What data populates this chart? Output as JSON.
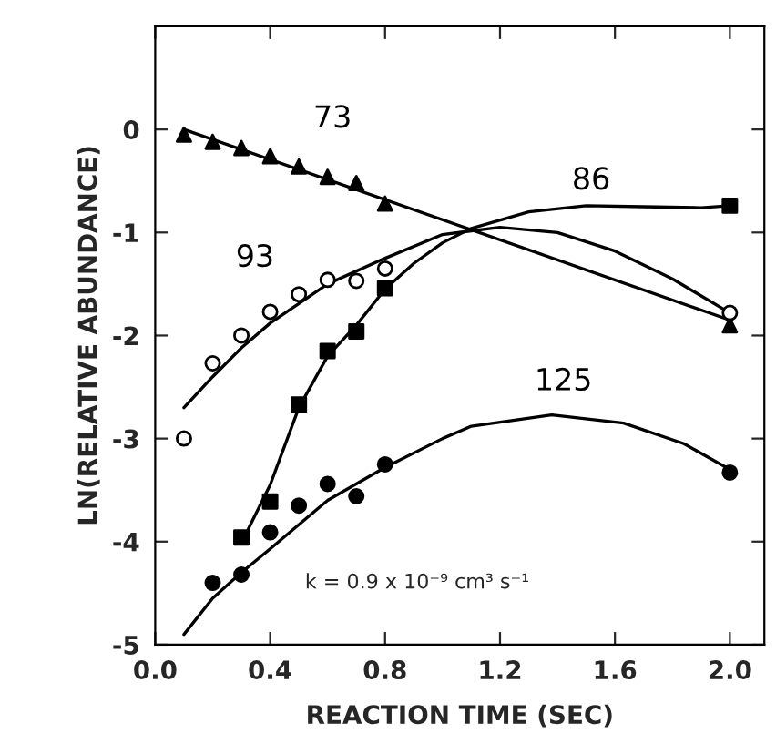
{
  "chart_data": {
    "type": "scatter",
    "xlabel": "REACTION TIME (SEC)",
    "ylabel": "LN(RELATIVE ABUNDANCE)",
    "xlim": [
      0,
      2.12
    ],
    "ylim": [
      -5,
      1
    ],
    "xticks": [
      {
        "value": 0,
        "label": "0.0"
      },
      {
        "value": 0.4,
        "label": "0.4"
      },
      {
        "value": 0.8,
        "label": "0.8"
      },
      {
        "value": 1.2,
        "label": "1.2"
      },
      {
        "value": 1.6,
        "label": "1.6"
      },
      {
        "value": 2.0,
        "label": "2.0"
      }
    ],
    "yticks": [
      -5,
      -4,
      -3,
      -2,
      -1,
      0
    ],
    "grid": false,
    "legend": false,
    "annotations": [
      "k = 0.9 x 10⁻⁹ cm³ s⁻¹"
    ],
    "series": [
      {
        "color": "#000000",
        "marker": "triangle",
        "x": [
          0.1,
          0.2,
          0.3,
          0.4,
          0.5,
          0.6,
          0.7,
          0.8,
          2.0
        ],
        "values": [
          -0.05,
          -0.12,
          -0.18,
          -0.26,
          -0.36,
          -0.46,
          -0.52,
          -0.72,
          -1.9
        ]
      },
      {
        "color": "#ffffff",
        "marker": "circle",
        "x": [
          0.1,
          0.2,
          0.3,
          0.4,
          0.5,
          0.6,
          0.7,
          0.8,
          2.0
        ],
        "values": [
          -3.0,
          -2.27,
          -2.0,
          -1.77,
          -1.6,
          -1.46,
          -1.47,
          -1.35,
          -1.78
        ]
      },
      {
        "color": "#000000",
        "marker": "square",
        "x": [
          0.3,
          0.4,
          0.5,
          0.6,
          0.7,
          0.8,
          2.0
        ],
        "values": [
          -3.96,
          -3.61,
          -2.67,
          -2.15,
          -1.96,
          -1.54,
          -0.74
        ]
      },
      {
        "color": "#000000",
        "marker": "circle",
        "x": [
          0.2,
          0.3,
          0.4,
          0.5,
          0.6,
          0.7,
          0.8,
          2.0
        ],
        "values": [
          -4.4,
          -4.32,
          -3.91,
          -3.65,
          -3.44,
          -3.56,
          -3.25,
          -3.33
        ]
      },
      {
        "type": "line",
        "color": "#000000",
        "marker": "none",
        "line_style": "solid",
        "name": "73",
        "x": [
          0.1,
          2.0
        ],
        "values": [
          0.0,
          -1.85
        ]
      },
      {
        "type": "line",
        "color": "#000000",
        "marker": "none",
        "line_style": "solid",
        "name": "93",
        "x": [
          0.1,
          0.2,
          0.3,
          0.4,
          0.6,
          0.8,
          1.0,
          1.2,
          1.4,
          1.6,
          1.8,
          2.0
        ],
        "values": [
          -2.7,
          -2.4,
          -2.12,
          -1.88,
          -1.5,
          -1.25,
          -1.02,
          -0.95,
          -1.0,
          -1.18,
          -1.45,
          -1.78
        ]
      },
      {
        "type": "line",
        "color": "#000000",
        "marker": "none",
        "line_style": "solid",
        "name": "86",
        "x": [
          0.32,
          0.4,
          0.5,
          0.6,
          0.7,
          0.8,
          0.9,
          1.0,
          1.1,
          1.3,
          1.5,
          1.7,
          1.9,
          2.0
        ],
        "values": [
          -3.9,
          -3.45,
          -2.7,
          -2.2,
          -1.9,
          -1.55,
          -1.3,
          -1.1,
          -0.96,
          -0.8,
          -0.74,
          -0.75,
          -0.76,
          -0.74
        ]
      },
      {
        "type": "line",
        "color": "#000000",
        "marker": "none",
        "line_style": "solid",
        "name": "125",
        "x": [
          0.1,
          0.2,
          0.3,
          0.4,
          0.6,
          0.8,
          1.0,
          1.1,
          1.38,
          1.63,
          1.84,
          2.0
        ],
        "values": [
          -4.9,
          -4.55,
          -4.3,
          -4.07,
          -3.6,
          -3.28,
          -3.0,
          -2.88,
          -2.77,
          -2.85,
          -3.05,
          -3.3
        ]
      }
    ]
  }
}
